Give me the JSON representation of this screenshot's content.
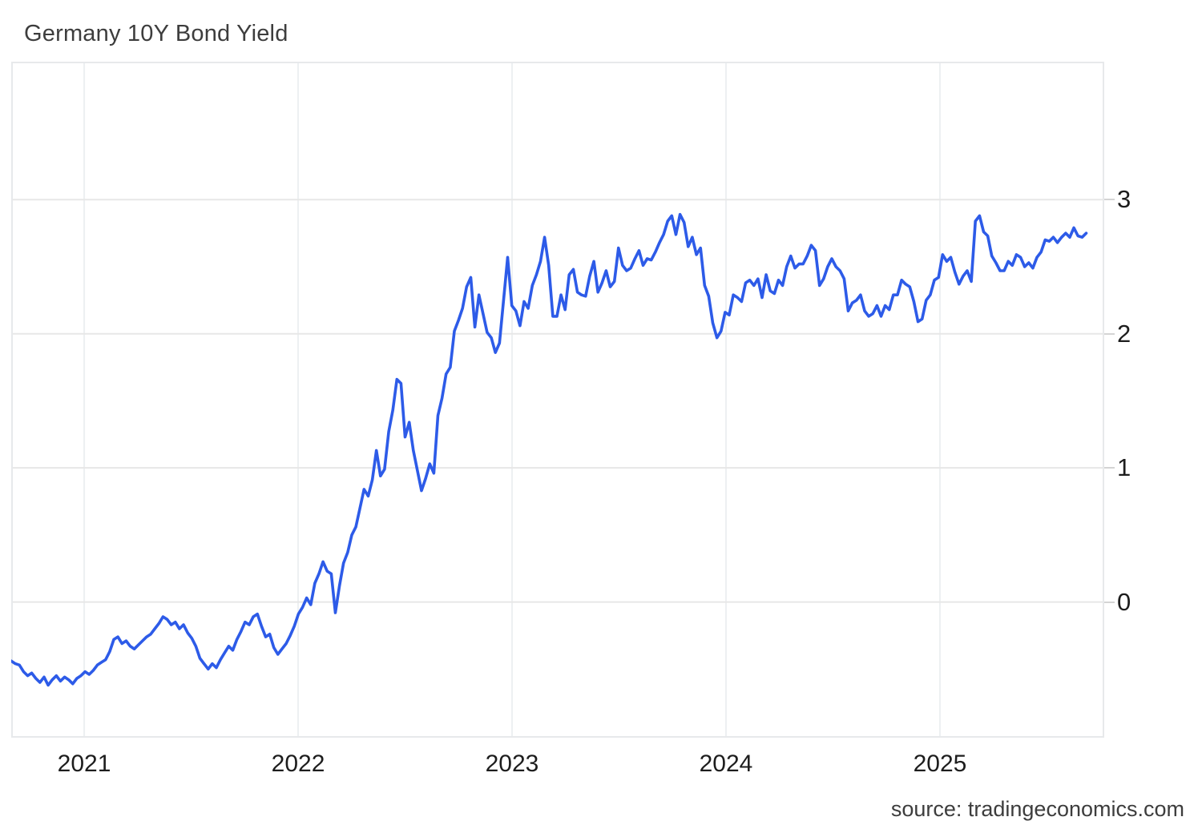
{
  "header": {
    "title": "Germany 10Y Bond Yield"
  },
  "footer": {
    "source": "source: tradingeconomics.com"
  },
  "colors": {
    "line": "#2d5be8",
    "grid_horizontal": "#e7e7e7",
    "grid_vertical": "#edf0f2",
    "plot_border": "#e7e9eb",
    "tick_dash": "#d4d4d4",
    "axis_text": "#1d1d1d",
    "title_text": "#3d3d3d"
  },
  "chart_data": {
    "type": "line",
    "title": "Germany 10Y Bond Yield",
    "xlabel": "",
    "ylabel": "",
    "legend_position": "none",
    "grid": true,
    "x_axis": {
      "ticks": [
        2021,
        2022,
        2023,
        2024,
        2025
      ],
      "min": 2020.659,
      "max": 2025.768
    },
    "y_axis": {
      "ticks": [
        3,
        2,
        1,
        0
      ],
      "min": -1.012,
      "max": 4.029
    },
    "x_start_year": 2020.659,
    "x_step_years": 0.0191781,
    "series": [
      {
        "name": "Germany 10Y Bond Yield",
        "unit": "percent",
        "frequency": "weekly",
        "values": [
          -0.44,
          -0.46,
          -0.47,
          -0.52,
          -0.55,
          -0.53,
          -0.57,
          -0.6,
          -0.56,
          -0.62,
          -0.58,
          -0.55,
          -0.59,
          -0.56,
          -0.58,
          -0.61,
          -0.57,
          -0.55,
          -0.52,
          -0.54,
          -0.51,
          -0.47,
          -0.45,
          -0.43,
          -0.37,
          -0.28,
          -0.26,
          -0.31,
          -0.29,
          -0.33,
          -0.35,
          -0.32,
          -0.29,
          -0.26,
          -0.24,
          -0.2,
          -0.16,
          -0.11,
          -0.13,
          -0.17,
          -0.15,
          -0.2,
          -0.17,
          -0.23,
          -0.27,
          -0.33,
          -0.42,
          -0.46,
          -0.5,
          -0.46,
          -0.49,
          -0.43,
          -0.38,
          -0.33,
          -0.36,
          -0.28,
          -0.22,
          -0.15,
          -0.17,
          -0.11,
          -0.09,
          -0.18,
          -0.26,
          -0.24,
          -0.34,
          -0.39,
          -0.35,
          -0.31,
          -0.25,
          -0.18,
          -0.09,
          -0.04,
          0.03,
          -0.02,
          0.14,
          0.21,
          0.3,
          0.23,
          0.21,
          -0.08,
          0.12,
          0.29,
          0.37,
          0.5,
          0.56,
          0.7,
          0.84,
          0.79,
          0.91,
          1.13,
          0.94,
          0.99,
          1.27,
          1.43,
          1.66,
          1.63,
          1.23,
          1.34,
          1.13,
          0.98,
          0.83,
          0.92,
          1.03,
          0.96,
          1.39,
          1.52,
          1.7,
          1.75,
          2.02,
          2.1,
          2.19,
          2.35,
          2.42,
          2.05,
          2.29,
          2.15,
          2.01,
          1.97,
          1.86,
          1.93,
          2.25,
          2.57,
          2.21,
          2.17,
          2.06,
          2.24,
          2.19,
          2.36,
          2.44,
          2.54,
          2.72,
          2.51,
          2.13,
          2.13,
          2.29,
          2.18,
          2.44,
          2.48,
          2.31,
          2.29,
          2.28,
          2.43,
          2.54,
          2.31,
          2.38,
          2.47,
          2.35,
          2.39,
          2.64,
          2.51,
          2.47,
          2.49,
          2.56,
          2.62,
          2.51,
          2.56,
          2.55,
          2.61,
          2.68,
          2.74,
          2.84,
          2.88,
          2.74,
          2.89,
          2.83,
          2.65,
          2.72,
          2.59,
          2.64,
          2.36,
          2.28,
          2.08,
          1.97,
          2.02,
          2.16,
          2.14,
          2.29,
          2.27,
          2.24,
          2.38,
          2.4,
          2.36,
          2.41,
          2.27,
          2.44,
          2.32,
          2.3,
          2.4,
          2.36,
          2.5,
          2.58,
          2.49,
          2.52,
          2.52,
          2.58,
          2.66,
          2.62,
          2.36,
          2.41,
          2.5,
          2.56,
          2.5,
          2.47,
          2.41,
          2.17,
          2.23,
          2.25,
          2.29,
          2.17,
          2.13,
          2.15,
          2.21,
          2.13,
          2.21,
          2.18,
          2.29,
          2.29,
          2.4,
          2.37,
          2.35,
          2.24,
          2.09,
          2.11,
          2.25,
          2.29,
          2.4,
          2.42,
          2.59,
          2.54,
          2.57,
          2.46,
          2.37,
          2.43,
          2.47,
          2.39,
          2.84,
          2.88,
          2.76,
          2.73,
          2.58,
          2.53,
          2.47,
          2.47,
          2.54,
          2.51,
          2.59,
          2.57,
          2.5,
          2.53,
          2.49,
          2.57,
          2.61,
          2.7,
          2.69,
          2.72,
          2.68,
          2.72,
          2.75,
          2.72,
          2.79,
          2.73,
          2.72,
          2.75
        ]
      }
    ]
  }
}
